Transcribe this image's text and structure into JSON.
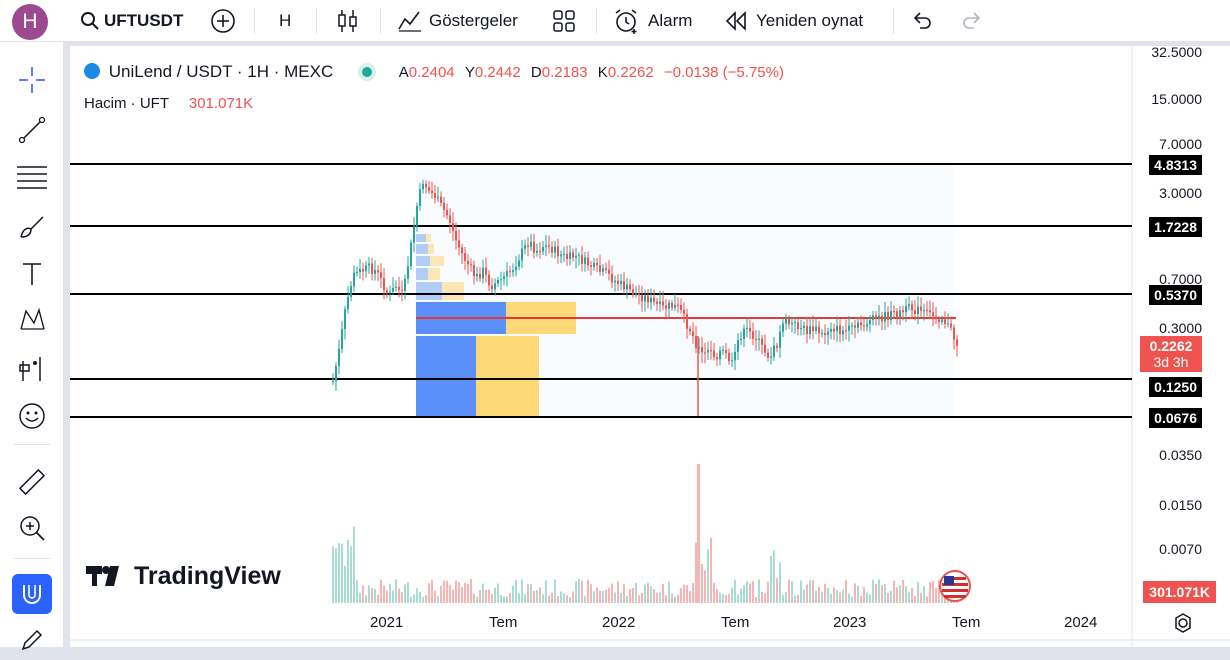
{
  "topbar": {
    "avatar_letter": "H",
    "symbol": "UFTUSDT",
    "interval": "H",
    "indicators_label": "Göstergeler",
    "alarm_label": "Alarm",
    "replay_label": "Yeniden oynat"
  },
  "legend": {
    "title": "UniLend / USDT · 1H · MEXC",
    "o_label": "A",
    "o_value": "0.2404",
    "h_label": "Y",
    "h_value": "0.2442",
    "l_label": "D",
    "l_value": "0.2183",
    "c_label": "K",
    "c_value": "0.2262",
    "change": "−0.0138 (−5.75%)",
    "volume_label": "Hacim · UFT",
    "volume_value": "301.071K"
  },
  "price_axis": {
    "ticks": [
      "32.5000",
      "15.0000",
      "7.0000",
      "3.0000",
      "0.7000",
      "0.3000",
      "0.0350",
      "0.0150",
      "0.0070"
    ],
    "lines": [
      "4.8313",
      "1.7228",
      "0.5370",
      "0.1250",
      "0.0676"
    ],
    "current_price": "0.2262",
    "countdown": "3d 3h",
    "volume_badge": "301.071K"
  },
  "time_axis": {
    "labels": [
      "2021",
      "Tem",
      "2022",
      "Tem",
      "2023",
      "Tem",
      "2024"
    ]
  },
  "watermark": "TradingView",
  "colors": {
    "up": "#26a69a",
    "down": "#ef5350",
    "accent": "#2962ff"
  }
}
